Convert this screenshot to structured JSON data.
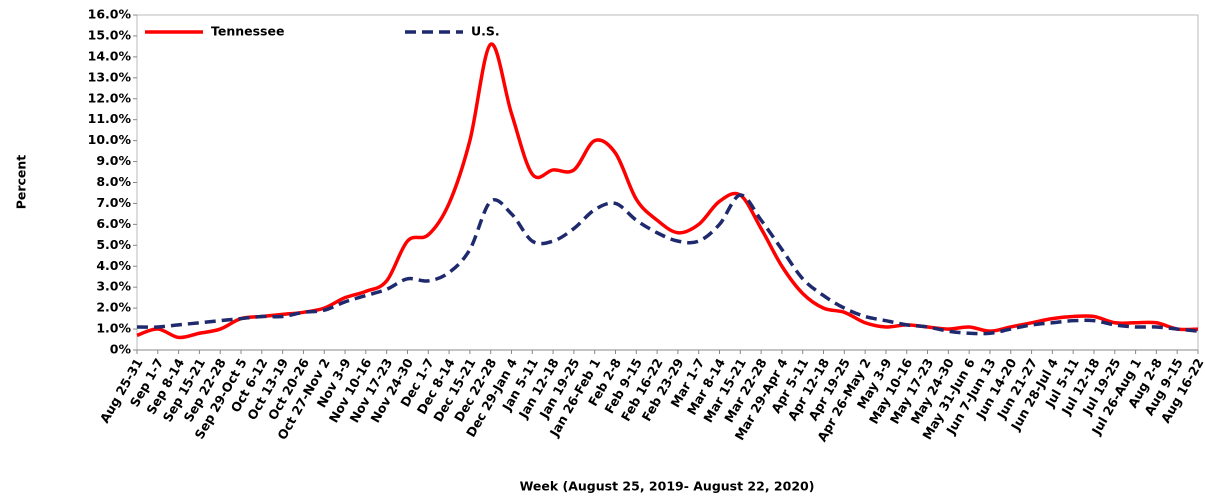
{
  "chart_data": {
    "type": "line",
    "xlabel": "Week (August 25, 2019- August 22, 2020)",
    "ylabel": "Percent",
    "categories": [
      "Aug 25-31",
      "Sep 1-7",
      "Sep 8-14",
      "Sep 15-21",
      "Sep 22-28",
      "Sep 29-Oct 5",
      "Oct 6-12",
      "Oct 13-19",
      "Oct 20-26",
      "Oct 27-Nov 2",
      "Nov 3-9",
      "Nov 10-16",
      "Nov 17-23",
      "Nov 24-30",
      "Dec 1-7",
      "Dec 8-14",
      "Dec 15-21",
      "Dec 22-28",
      "Dec 29-Jan 4",
      "Jan 5-11",
      "Jan 12-18",
      "Jan 19-25",
      "Jan 26-Feb 1",
      "Feb 2-8",
      "Feb 9-15",
      "Feb 16-22",
      "Feb 23-29",
      "Mar 1-7",
      "Mar 8-14",
      "Mar 15-21",
      "Mar 22-28",
      "Mar 29-Apr 4",
      "Apr 5-11",
      "Apr 12-18",
      "Apr 19-25",
      "Apr 26-May 2",
      "May 3-9",
      "May 10-16",
      "May 17-23",
      "May 24-30",
      "May 31-Jun 6",
      "Jun 7-Jun 13",
      "Jun 14-20",
      "Jun 21-27",
      "Jun 28-Jul 4",
      "Jul 5-11",
      "Jul 12-18",
      "Jul 19-25",
      "Jul 26-Aug 1",
      "Aug 2-8",
      "Aug 9-15",
      "Aug 16-22"
    ],
    "series": [
      {
        "name": "Tennessee",
        "color": "#ff0000",
        "dash": false,
        "values": [
          0.7,
          1.0,
          0.6,
          0.8,
          1.0,
          1.5,
          1.6,
          1.7,
          1.8,
          2.0,
          2.5,
          2.8,
          3.3,
          5.2,
          5.5,
          7.0,
          10.0,
          14.6,
          11.3,
          8.4,
          8.6,
          8.6,
          10.0,
          9.4,
          7.2,
          6.2,
          5.6,
          6.0,
          7.1,
          7.4,
          5.8,
          4.0,
          2.7,
          2.0,
          1.8,
          1.3,
          1.1,
          1.2,
          1.1,
          1.0,
          1.1,
          0.9,
          1.1,
          1.3,
          1.5,
          1.6,
          1.6,
          1.3,
          1.3,
          1.3,
          1.0,
          1.0
        ]
      },
      {
        "name": "U.S.",
        "color": "#1f2a6e",
        "dash": true,
        "values": [
          1.1,
          1.1,
          1.2,
          1.3,
          1.4,
          1.5,
          1.6,
          1.6,
          1.8,
          1.9,
          2.3,
          2.6,
          2.9,
          3.4,
          3.3,
          3.7,
          4.8,
          7.1,
          6.5,
          5.2,
          5.2,
          5.8,
          6.7,
          7.0,
          6.2,
          5.6,
          5.2,
          5.2,
          6.0,
          7.4,
          6.2,
          4.8,
          3.4,
          2.6,
          2.0,
          1.6,
          1.4,
          1.2,
          1.1,
          0.9,
          0.8,
          0.8,
          1.0,
          1.2,
          1.3,
          1.4,
          1.4,
          1.2,
          1.1,
          1.1,
          1.0,
          0.9
        ]
      }
    ],
    "ylim": [
      0,
      16
    ],
    "yticks": [
      {
        "value": 0,
        "label": "0%"
      },
      {
        "value": 1,
        "label": "1.0%"
      },
      {
        "value": 2,
        "label": "2.0%"
      },
      {
        "value": 3,
        "label": "3.0%"
      },
      {
        "value": 4,
        "label": "4.0%"
      },
      {
        "value": 5,
        "label": "5.0%"
      },
      {
        "value": 6,
        "label": "6.0%"
      },
      {
        "value": 7,
        "label": "7.0%"
      },
      {
        "value": 8,
        "label": "8.0%"
      },
      {
        "value": 9,
        "label": "9.0%"
      },
      {
        "value": 10,
        "label": "10.0%"
      },
      {
        "value": 11,
        "label": "11.0%"
      },
      {
        "value": 12,
        "label": "12.0%"
      },
      {
        "value": 13,
        "label": "13.0%"
      },
      {
        "value": 14,
        "label": "14.0%"
      },
      {
        "value": 15,
        "label": "15.0%"
      },
      {
        "value": 16,
        "label": "16.0%"
      }
    ],
    "legend": "top-left"
  }
}
